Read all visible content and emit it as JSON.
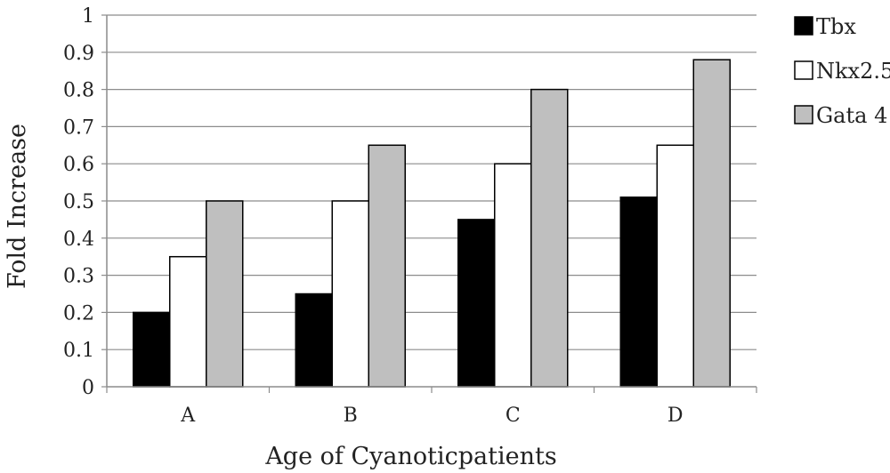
{
  "chart_data": {
    "type": "bar",
    "categories": [
      "A",
      "B",
      "C",
      "D"
    ],
    "series": [
      {
        "name": "Tbx",
        "values": [
          0.2,
          0.25,
          0.45,
          0.51
        ],
        "color": "#000000"
      },
      {
        "name": "Nkx2.5",
        "values": [
          0.35,
          0.5,
          0.6,
          0.65
        ],
        "color": "#ffffff"
      },
      {
        "name": "Gata 4",
        "values": [
          0.5,
          0.65,
          0.8,
          0.88
        ],
        "color": "#bfbfbf"
      }
    ],
    "xlabel": "Age of Cyanoticpatients",
    "ylabel": "Fold Increase",
    "ylim": [
      0,
      1
    ],
    "yticks": [
      "0",
      "0.1",
      "0.2",
      "0.3",
      "0.4",
      "0.5",
      "0.6",
      "0.7",
      "0.8",
      "0.9",
      "1"
    ],
    "grid": true,
    "legend_position": "right"
  }
}
